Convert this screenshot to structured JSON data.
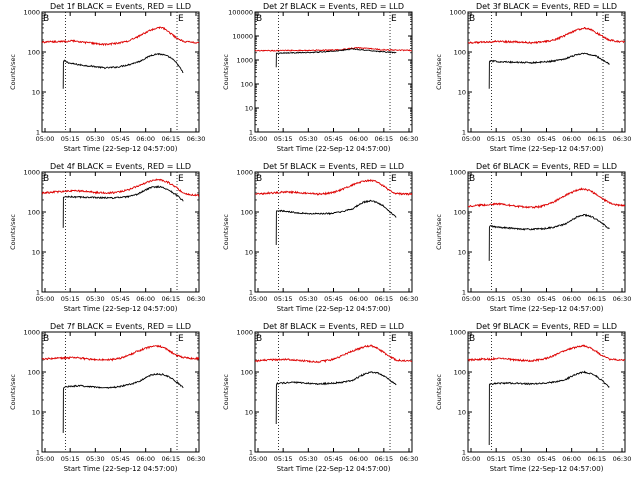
{
  "figure": {
    "ylabel": "Counts/sec",
    "xlabel": "Start Time (22-Sep-12 04:57:00)",
    "legend_text": "BLACK = Events, RED = LLD",
    "series_colors": {
      "events": "#000000",
      "lld": "#dd0000"
    },
    "marker_b": "B",
    "marker_e": "E"
  },
  "chart_data": [
    {
      "type": "line",
      "title": "Det 1f BLACK = Events, RED = LLD",
      "xticks": [
        "05:00",
        "05:15",
        "05:30",
        "05:45",
        "06:00",
        "06:15",
        "06:30"
      ],
      "yticks": [
        "1",
        "10",
        "100",
        "1000"
      ],
      "ylim": [
        1,
        1000
      ],
      "xlim": [
        0,
        100
      ],
      "vlines": [
        15,
        86
      ],
      "series": [
        {
          "name": "Events",
          "color": "#000000",
          "x": [
            13.5,
            13.6,
            14,
            18,
            25,
            32,
            40,
            48,
            55,
            62,
            66,
            70,
            74,
            78,
            82,
            86,
            90
          ],
          "y": [
            12,
            55,
            60,
            52,
            47,
            44,
            40,
            42,
            48,
            58,
            70,
            84,
            90,
            84,
            72,
            52,
            30
          ]
        },
        {
          "name": "LLD",
          "color": "#dd0000",
          "x": [
            0,
            5,
            10,
            15,
            20,
            25,
            30,
            35,
            40,
            45,
            50,
            55,
            60,
            65,
            70,
            74,
            78,
            82,
            86,
            90,
            95,
            100
          ],
          "y": [
            175,
            180,
            178,
            185,
            190,
            175,
            170,
            160,
            155,
            160,
            170,
            190,
            230,
            290,
            360,
            420,
            380,
            290,
            220,
            185,
            175,
            170
          ]
        }
      ]
    },
    {
      "type": "line",
      "title": "Det 2f BLACK = Events, RED = LLD",
      "xticks": [
        "05:00",
        "05:15",
        "05:30",
        "05:45",
        "06:00",
        "06:15",
        "06:30"
      ],
      "yticks": [
        "1",
        "10",
        "100",
        "1000",
        "10000",
        "100000"
      ],
      "ylim": [
        1,
        100000
      ],
      "xlim": [
        0,
        100
      ],
      "vlines": [
        15,
        86
      ],
      "series": [
        {
          "name": "Events",
          "color": "#000000",
          "x": [
            13.5,
            13.6,
            15,
            25,
            35,
            45,
            55,
            62,
            70,
            78,
            86,
            90
          ],
          "y": [
            500,
            1900,
            1950,
            2000,
            2050,
            2200,
            2500,
            2900,
            2600,
            2300,
            2100,
            2000
          ]
        },
        {
          "name": "LLD",
          "color": "#dd0000",
          "x": [
            0,
            10,
            20,
            30,
            40,
            50,
            55,
            60,
            65,
            70,
            75,
            80,
            86,
            90,
            100
          ],
          "y": [
            2400,
            2450,
            2500,
            2500,
            2550,
            2600,
            2700,
            3000,
            3200,
            3100,
            2900,
            2700,
            2600,
            2550,
            2500
          ]
        }
      ]
    },
    {
      "type": "line",
      "title": "Det 3f BLACK = Events, RED = LLD",
      "xticks": [
        "05:00",
        "05:15",
        "05:30",
        "05:45",
        "06:00",
        "06:15",
        "06:30"
      ],
      "yticks": [
        "1",
        "10",
        "100",
        "1000"
      ],
      "ylim": [
        1,
        1000
      ],
      "xlim": [
        0,
        100
      ],
      "vlines": [
        15,
        86
      ],
      "series": [
        {
          "name": "Events",
          "color": "#000000",
          "x": [
            13.5,
            13.6,
            14,
            18,
            25,
            32,
            40,
            48,
            55,
            62,
            66,
            70,
            74,
            78,
            82,
            86,
            90
          ],
          "y": [
            12,
            55,
            60,
            58,
            56,
            55,
            54,
            56,
            60,
            68,
            78,
            88,
            92,
            86,
            78,
            62,
            50
          ]
        },
        {
          "name": "LLD",
          "color": "#dd0000",
          "x": [
            0,
            5,
            10,
            15,
            20,
            25,
            30,
            35,
            40,
            45,
            50,
            55,
            60,
            65,
            70,
            74,
            78,
            82,
            86,
            90,
            95,
            100
          ],
          "y": [
            170,
            175,
            175,
            180,
            185,
            180,
            178,
            175,
            170,
            175,
            185,
            200,
            240,
            300,
            360,
            400,
            370,
            300,
            240,
            200,
            185,
            180
          ]
        }
      ]
    },
    {
      "type": "line",
      "title": "Det 4f BLACK = Events, RED = LLD",
      "xticks": [
        "05:00",
        "05:15",
        "05:30",
        "05:45",
        "06:00",
        "06:15",
        "06:30"
      ],
      "yticks": [
        "1",
        "10",
        "100",
        "1000"
      ],
      "ylim": [
        1,
        1000
      ],
      "xlim": [
        0,
        100
      ],
      "vlines": [
        15,
        86
      ],
      "series": [
        {
          "name": "Events",
          "color": "#000000",
          "x": [
            13.5,
            13.6,
            15,
            25,
            35,
            45,
            55,
            60,
            65,
            70,
            75,
            80,
            86,
            90
          ],
          "y": [
            40,
            230,
            240,
            235,
            230,
            225,
            240,
            270,
            340,
            420,
            430,
            370,
            260,
            190
          ]
        },
        {
          "name": "LLD",
          "color": "#dd0000",
          "x": [
            0,
            5,
            10,
            15,
            20,
            25,
            30,
            35,
            40,
            45,
            50,
            55,
            60,
            65,
            70,
            75,
            80,
            86,
            90,
            95,
            100
          ],
          "y": [
            300,
            310,
            320,
            330,
            340,
            335,
            320,
            305,
            300,
            305,
            320,
            360,
            430,
            520,
            620,
            640,
            560,
            400,
            300,
            270,
            260
          ]
        }
      ]
    },
    {
      "type": "line",
      "title": "Det 5f BLACK = Events, RED = LLD",
      "xticks": [
        "05:00",
        "05:15",
        "05:30",
        "05:45",
        "06:00",
        "06:15",
        "06:30"
      ],
      "yticks": [
        "1",
        "10",
        "100",
        "1000"
      ],
      "ylim": [
        1,
        1000
      ],
      "xlim": [
        0,
        100
      ],
      "vlines": [
        15,
        86
      ],
      "series": [
        {
          "name": "Events",
          "color": "#000000",
          "x": [
            13.5,
            13.6,
            14,
            18,
            25,
            32,
            40,
            48,
            55,
            62,
            66,
            70,
            74,
            78,
            82,
            86,
            90
          ],
          "y": [
            15,
            100,
            110,
            105,
            98,
            92,
            90,
            92,
            100,
            120,
            150,
            180,
            190,
            170,
            140,
            100,
            75
          ]
        },
        {
          "name": "LLD",
          "color": "#dd0000",
          "x": [
            0,
            5,
            10,
            15,
            20,
            25,
            30,
            35,
            40,
            45,
            50,
            55,
            60,
            65,
            70,
            74,
            78,
            82,
            86,
            90,
            95,
            100
          ],
          "y": [
            280,
            290,
            300,
            310,
            320,
            310,
            300,
            290,
            280,
            290,
            310,
            360,
            440,
            530,
            600,
            620,
            560,
            440,
            340,
            290,
            280,
            280
          ]
        }
      ]
    },
    {
      "type": "line",
      "title": "Det 6f BLACK = Events, RED = LLD",
      "xticks": [
        "05:00",
        "05:15",
        "05:30",
        "05:45",
        "06:00",
        "06:15",
        "06:30"
      ],
      "yticks": [
        "1",
        "10",
        "100",
        "1000"
      ],
      "ylim": [
        1,
        1000
      ],
      "xlim": [
        0,
        100
      ],
      "vlines": [
        15,
        86
      ],
      "series": [
        {
          "name": "Events",
          "color": "#000000",
          "x": [
            13.5,
            13.6,
            14,
            18,
            25,
            32,
            40,
            48,
            55,
            62,
            66,
            70,
            74,
            78,
            82,
            86,
            90
          ],
          "y": [
            6,
            40,
            45,
            42,
            40,
            38,
            37,
            38,
            42,
            50,
            62,
            78,
            85,
            78,
            65,
            50,
            38
          ]
        },
        {
          "name": "LLD",
          "color": "#dd0000",
          "x": [
            0,
            5,
            10,
            15,
            20,
            25,
            30,
            35,
            40,
            45,
            50,
            55,
            60,
            65,
            70,
            74,
            78,
            82,
            86,
            90,
            95,
            100
          ],
          "y": [
            140,
            145,
            150,
            155,
            160,
            150,
            140,
            135,
            130,
            135,
            150,
            180,
            240,
            300,
            360,
            380,
            340,
            270,
            210,
            170,
            150,
            145
          ]
        }
      ]
    },
    {
      "type": "line",
      "title": "Det 7f BLACK = Events, RED = LLD",
      "xticks": [
        "05:00",
        "05:15",
        "05:30",
        "05:45",
        "06:00",
        "06:15",
        "06:30"
      ],
      "yticks": [
        "1",
        "10",
        "100",
        "1000"
      ],
      "ylim": [
        1,
        1000
      ],
      "xlim": [
        0,
        100
      ],
      "vlines": [
        15,
        86
      ],
      "series": [
        {
          "name": "Events",
          "color": "#000000",
          "x": [
            13.5,
            13.6,
            14,
            18,
            25,
            32,
            40,
            48,
            55,
            62,
            66,
            70,
            74,
            78,
            82,
            86,
            90
          ],
          "y": [
            3,
            35,
            42,
            44,
            45,
            43,
            40,
            42,
            48,
            58,
            72,
            85,
            90,
            85,
            72,
            55,
            40
          ]
        },
        {
          "name": "LLD",
          "color": "#dd0000",
          "x": [
            0,
            5,
            10,
            15,
            20,
            25,
            30,
            35,
            40,
            45,
            50,
            55,
            60,
            65,
            70,
            74,
            78,
            82,
            86,
            90,
            95,
            100
          ],
          "y": [
            210,
            215,
            220,
            225,
            230,
            220,
            210,
            205,
            200,
            205,
            220,
            260,
            320,
            380,
            430,
            450,
            400,
            320,
            260,
            230,
            220,
            215
          ]
        }
      ]
    },
    {
      "type": "line",
      "title": "Det 8f BLACK = Events, RED = LLD",
      "xticks": [
        "05:00",
        "05:15",
        "05:30",
        "05:45",
        "06:00",
        "06:15",
        "06:30"
      ],
      "yticks": [
        "1",
        "10",
        "100",
        "1000"
      ],
      "ylim": [
        1,
        1000
      ],
      "xlim": [
        0,
        100
      ],
      "vlines": [
        15,
        86
      ],
      "series": [
        {
          "name": "Events",
          "color": "#000000",
          "x": [
            13.5,
            13.6,
            14,
            18,
            25,
            32,
            40,
            48,
            55,
            62,
            66,
            70,
            74,
            78,
            82,
            86,
            90
          ],
          "y": [
            5,
            45,
            52,
            53,
            55,
            53,
            50,
            52,
            55,
            62,
            75,
            90,
            100,
            95,
            80,
            62,
            48
          ]
        },
        {
          "name": "LLD",
          "color": "#dd0000",
          "x": [
            0,
            5,
            10,
            15,
            20,
            25,
            30,
            35,
            40,
            45,
            50,
            55,
            60,
            65,
            70,
            74,
            78,
            82,
            86,
            90,
            95,
            100
          ],
          "y": [
            190,
            195,
            200,
            205,
            210,
            200,
            190,
            185,
            180,
            190,
            210,
            250,
            310,
            370,
            430,
            450,
            400,
            310,
            240,
            200,
            190,
            185
          ]
        }
      ]
    },
    {
      "type": "line",
      "title": "Det 9f BLACK = Events, RED = LLD",
      "xticks": [
        "05:00",
        "05:15",
        "05:30",
        "05:45",
        "06:00",
        "06:15",
        "06:30"
      ],
      "yticks": [
        "1",
        "10",
        "100",
        "1000"
      ],
      "ylim": [
        1,
        1000
      ],
      "xlim": [
        0,
        100
      ],
      "vlines": [
        15,
        86
      ],
      "series": [
        {
          "name": "Events",
          "color": "#000000",
          "x": [
            13.5,
            13.6,
            14,
            18,
            25,
            32,
            40,
            48,
            55,
            62,
            66,
            70,
            74,
            78,
            82,
            86,
            90
          ],
          "y": [
            1.5,
            48,
            50,
            52,
            53,
            52,
            50,
            52,
            56,
            64,
            78,
            92,
            100,
            92,
            78,
            58,
            42
          ]
        },
        {
          "name": "LLD",
          "color": "#dd0000",
          "x": [
            0,
            5,
            10,
            15,
            20,
            25,
            30,
            35,
            40,
            45,
            50,
            55,
            60,
            65,
            70,
            74,
            78,
            82,
            86,
            90,
            95,
            100
          ],
          "y": [
            200,
            205,
            210,
            210,
            220,
            210,
            200,
            195,
            190,
            200,
            220,
            260,
            320,
            380,
            430,
            450,
            400,
            320,
            250,
            210,
            200,
            195
          ]
        }
      ]
    }
  ]
}
